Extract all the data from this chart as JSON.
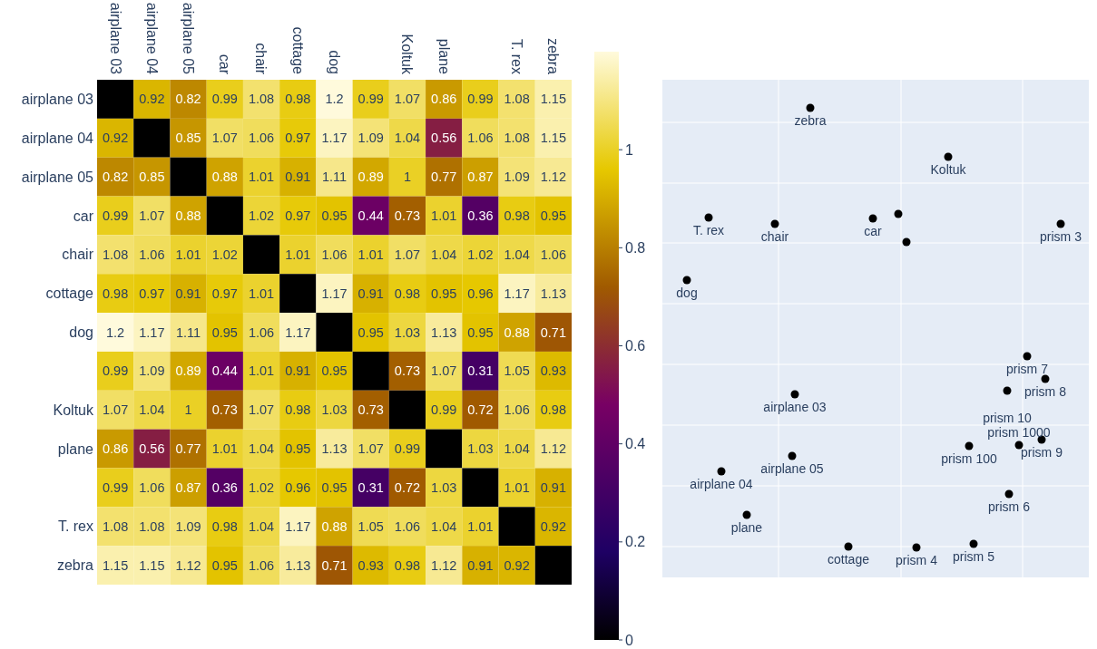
{
  "chart_data": [
    {
      "type": "heatmap",
      "categories": [
        "airplane 03",
        "airplane 04",
        "airplane 05",
        "car",
        "chair",
        "cottage",
        "dog",
        null,
        "Koltuk",
        "plane",
        null,
        "T. rex",
        "zebra"
      ],
      "y_categories": [
        "airplane 03",
        "airplane 04",
        "airplane 05",
        "car",
        "chair",
        "cottage",
        "dog",
        null,
        "Koltuk",
        "plane",
        null,
        "T. rex",
        "zebra"
      ],
      "cells": [
        [
          0,
          0.92,
          0.82,
          0.99,
          1.08,
          0.98,
          1.2,
          0.99,
          1.07,
          0.86,
          0.99,
          1.08,
          1.15
        ],
        [
          0.92,
          0,
          0.85,
          1.07,
          1.06,
          0.97,
          1.17,
          1.09,
          1.04,
          0.56,
          1.06,
          1.08,
          1.15
        ],
        [
          0.82,
          0.85,
          0,
          0.88,
          1.01,
          0.91,
          1.11,
          0.89,
          1,
          0.77,
          0.87,
          1.09,
          1.12
        ],
        [
          0.99,
          1.07,
          0.88,
          0,
          1.02,
          0.97,
          0.95,
          0.44,
          0.73,
          1.01,
          0.36,
          0.98,
          0.95
        ],
        [
          1.08,
          1.06,
          1.01,
          1.02,
          0,
          1.01,
          1.06,
          1.01,
          1.07,
          1.04,
          1.02,
          1.04,
          1.06
        ],
        [
          0.98,
          0.97,
          0.91,
          0.97,
          1.01,
          0,
          1.17,
          0.91,
          0.98,
          0.95,
          0.96,
          1.17,
          1.13
        ],
        [
          1.2,
          1.17,
          1.11,
          0.95,
          1.06,
          1.17,
          0,
          0.95,
          1.03,
          1.13,
          0.95,
          0.88,
          0.71
        ],
        [
          0.99,
          1.09,
          0.89,
          0.44,
          1.01,
          0.91,
          0.95,
          0,
          0.73,
          1.07,
          0.31,
          1.05,
          0.93
        ],
        [
          1.07,
          1.04,
          1,
          0.73,
          1.07,
          0.98,
          1.03,
          0.73,
          0,
          0.99,
          0.72,
          1.06,
          0.98
        ],
        [
          0.86,
          0.56,
          0.77,
          1.01,
          1.04,
          0.95,
          1.13,
          1.07,
          0.99,
          0,
          1.03,
          1.04,
          1.12
        ],
        [
          0.99,
          1.06,
          0.87,
          0.36,
          1.02,
          0.96,
          0.95,
          0.31,
          0.72,
          1.03,
          0,
          1.01,
          0.91
        ],
        [
          1.08,
          1.08,
          1.09,
          0.98,
          1.04,
          1.17,
          0.88,
          1.05,
          1.06,
          1.04,
          1.01,
          0,
          0.92
        ],
        [
          1.15,
          1.15,
          1.12,
          0.95,
          1.06,
          1.13,
          0.71,
          0.93,
          0.98,
          1.12,
          0.91,
          0.92,
          0
        ]
      ],
      "cell_labels": [
        [
          null,
          "0.92",
          "0.82",
          "0.99",
          "1.08",
          "0.98",
          "1.2",
          "0.99",
          "1.07",
          "0.86",
          "0.99",
          "1.08",
          "1.15"
        ],
        [
          "0.92",
          null,
          "0.85",
          "1.07",
          "1.06",
          "0.97",
          "1.17",
          "1.09",
          "1.04",
          "0.56",
          "1.06",
          "1.08",
          "1.15"
        ],
        [
          "0.82",
          "0.85",
          null,
          "0.88",
          "1.01",
          "0.91",
          "1.11",
          "0.89",
          "1",
          "0.77",
          "0.87",
          "1.09",
          "1.12"
        ],
        [
          "0.99",
          "1.07",
          "0.88",
          null,
          "1.02",
          "0.97",
          "0.95",
          "0.44",
          "0.73",
          "1.01",
          "0.36",
          "0.98",
          "0.95"
        ],
        [
          "1.08",
          "1.06",
          "1.01",
          "1.02",
          null,
          "1.01",
          "1.06",
          "1.01",
          "1.07",
          "1.04",
          "1.02",
          "1.04",
          "1.06"
        ],
        [
          "0.98",
          "0.97",
          "0.91",
          "0.97",
          "1.01",
          null,
          "1.17",
          "0.91",
          "0.98",
          "0.95",
          "0.96",
          "1.17",
          "1.13"
        ],
        [
          "1.2",
          "1.17",
          "1.11",
          "0.95",
          "1.06",
          "1.17",
          null,
          "0.95",
          "1.03",
          "1.13",
          "0.95",
          "0.88",
          "0.71"
        ],
        [
          "0.99",
          "1.09",
          "0.89",
          "0.44",
          "1.01",
          "0.91",
          "0.95",
          null,
          "0.73",
          "1.07",
          "0.31",
          "1.05",
          "0.93"
        ],
        [
          "1.07",
          "1.04",
          "1",
          "0.73",
          "1.07",
          "0.98",
          "1.03",
          "0.73",
          null,
          "0.99",
          "0.72",
          "1.06",
          "0.98"
        ],
        [
          "0.86",
          "0.56",
          "0.77",
          "1.01",
          "1.04",
          "0.95",
          "1.13",
          "1.07",
          "0.99",
          null,
          "1.03",
          "1.04",
          "1.12"
        ],
        [
          "0.99",
          "1.06",
          "0.87",
          "0.36",
          "1.02",
          "0.96",
          "0.95",
          "0.31",
          "0.72",
          "1.03",
          null,
          "1.01",
          "0.91"
        ],
        [
          "1.08",
          "1.08",
          "1.09",
          "0.98",
          "1.04",
          "1.17",
          "0.88",
          "1.05",
          "1.06",
          "1.04",
          "1.01",
          null,
          "0.92"
        ],
        [
          "1.15",
          "1.15",
          "1.12",
          "0.95",
          "1.06",
          "1.13",
          "0.71",
          "0.93",
          "0.98",
          "1.12",
          "0.91",
          "0.92",
          null
        ]
      ],
      "clim": [
        0,
        1.2
      ],
      "cticks": [
        0,
        0.2,
        0.4,
        0.6,
        0.8,
        1
      ]
    },
    {
      "type": "other",
      "annotations": [
        "zebra",
        "Koltuk",
        "T. rex",
        "chair",
        "car",
        "prism 3",
        "dog",
        "prism 7",
        "prism 8",
        "prism 10",
        "airplane 03",
        "prism 9",
        "prism 1000",
        "prism 100",
        "airplane 05",
        "airplane 04",
        "prism 6",
        "plane",
        "cottage",
        "prism 4",
        "prism 5"
      ]
    }
  ]
}
